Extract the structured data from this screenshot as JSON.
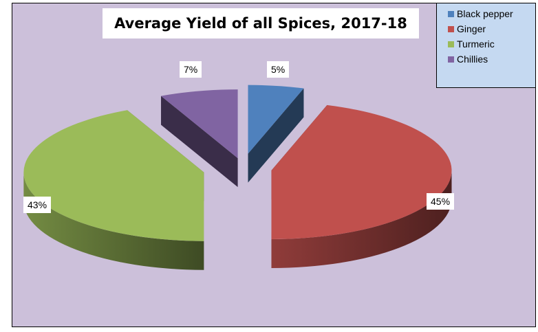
{
  "chart_data": {
    "type": "pie",
    "style": "3d-exploded",
    "title": "Average Yield of all Spices, 2017-18",
    "categories": [
      "Black pepper",
      "Ginger",
      "Turmeric",
      "Chillies"
    ],
    "values": [
      5,
      45,
      43,
      7
    ],
    "data_labels": [
      "5%",
      "45%",
      "43%",
      "7%"
    ],
    "colors": [
      "#4f81bd",
      "#c0504d",
      "#9bbb59",
      "#8064a2"
    ],
    "legend_position": "top-right",
    "background_color": "#ccc0da",
    "legend_background": "#c5d9f1"
  }
}
